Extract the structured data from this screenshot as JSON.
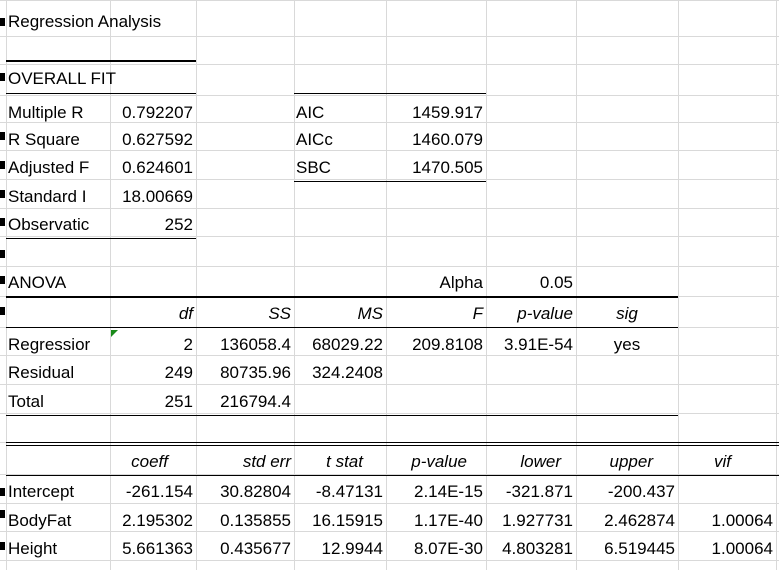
{
  "title": "Regression Analysis",
  "overall_fit": {
    "heading": "OVERALL FIT",
    "rows": [
      {
        "label": "Multiple R",
        "value": "0.792207"
      },
      {
        "label": "R Square",
        "value": "0.627592"
      },
      {
        "label": "Adjusted F",
        "value": "0.624601"
      },
      {
        "label": "Standard I",
        "value": "18.00669"
      },
      {
        "label": "Observatic",
        "value": "252"
      }
    ]
  },
  "info_criteria": [
    {
      "label": "AIC",
      "value": "1459.917"
    },
    {
      "label": "AICc",
      "value": "1460.079"
    },
    {
      "label": "SBC",
      "value": "1470.505"
    }
  ],
  "anova": {
    "heading": "ANOVA",
    "alpha_label": "Alpha",
    "alpha_value": "0.05",
    "headers": [
      "df",
      "SS",
      "MS",
      "F",
      "p-value",
      "sig"
    ],
    "rows": [
      {
        "label": "Regressior",
        "df": "2",
        "ss": "136058.4",
        "ms": "68029.22",
        "f": "209.8108",
        "p": "3.91E-54",
        "sig": "yes"
      },
      {
        "label": "Residual",
        "df": "249",
        "ss": "80735.96",
        "ms": "324.2408",
        "f": "",
        "p": "",
        "sig": ""
      },
      {
        "label": "Total",
        "df": "251",
        "ss": "216794.4",
        "ms": "",
        "f": "",
        "p": "",
        "sig": ""
      }
    ]
  },
  "coefficients": {
    "headers": [
      "coeff",
      "std err",
      "t stat",
      "p-value",
      "lower",
      "upper",
      "vif"
    ],
    "rows": [
      {
        "label": "Intercept",
        "values": [
          "-261.154",
          "30.82804",
          "-8.47131",
          "2.14E-15",
          "-321.871",
          "-200.437",
          ""
        ]
      },
      {
        "label": "BodyFat",
        "values": [
          "2.195302",
          "0.135855",
          "16.15915",
          "1.17E-40",
          "1.927731",
          "2.462874",
          "1.00064"
        ]
      },
      {
        "label": "Height",
        "values": [
          "5.661363",
          "0.435677",
          "12.9944",
          "8.07E-30",
          "4.803281",
          "6.519445",
          "1.00064"
        ]
      }
    ]
  },
  "colors": {
    "gridline": "#d9d9d9",
    "border": "#000000",
    "error_indicator": "#1a8a1a"
  }
}
